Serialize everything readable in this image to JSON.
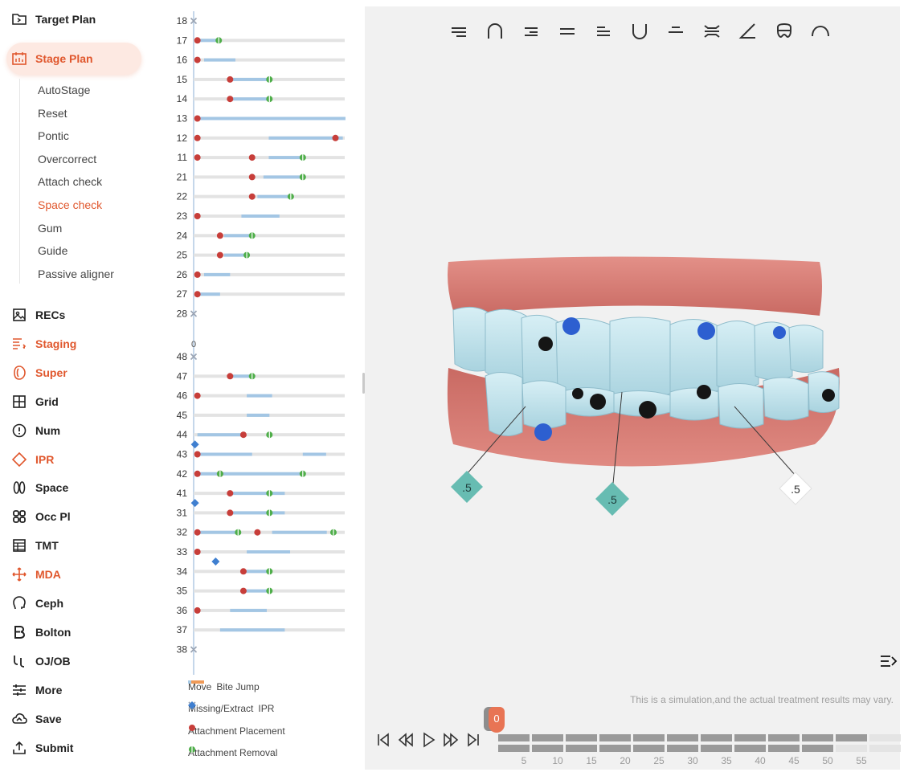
{
  "sidebar": {
    "top_items": [
      {
        "label": "Target Plan",
        "icon": "folder-icon"
      },
      {
        "label": "Stage Plan",
        "icon": "calendar-icon",
        "active": true
      }
    ],
    "sub_items": [
      "AutoStage",
      "Reset",
      "Pontic",
      "Overcorrect",
      "Attach check",
      "Space check",
      "Gum",
      "Guide",
      "Passive aligner"
    ],
    "active_sub_item": "Space check",
    "tools": [
      {
        "label": "RECs",
        "icon": "image-icon",
        "accent": false
      },
      {
        "label": "Staging",
        "icon": "staging-icon",
        "accent": true
      },
      {
        "label": "Super",
        "icon": "super-icon",
        "accent": true
      },
      {
        "label": "Grid",
        "icon": "grid-icon",
        "accent": false
      },
      {
        "label": "Num",
        "icon": "num-icon",
        "accent": false
      },
      {
        "label": "IPR",
        "icon": "diamond-icon",
        "accent": true
      },
      {
        "label": "Space",
        "icon": "space-icon",
        "accent": false
      },
      {
        "label": "Occ Pl",
        "icon": "occ-icon",
        "accent": false
      },
      {
        "label": "TMT",
        "icon": "table-icon",
        "accent": false
      },
      {
        "label": "MDA",
        "icon": "move-icon",
        "accent": true
      },
      {
        "label": "Ceph",
        "icon": "head-icon",
        "accent": false
      },
      {
        "label": "Bolton",
        "icon": "bolton-icon",
        "accent": false
      },
      {
        "label": "OJ/OB",
        "icon": "ojob-icon",
        "accent": false
      },
      {
        "label": "More",
        "icon": "sliders-icon",
        "accent": false
      },
      {
        "label": "Save",
        "icon": "cloud-icon",
        "accent": false
      },
      {
        "label": "Submit",
        "icon": "upload-icon",
        "accent": false
      }
    ]
  },
  "chart_data": {
    "type": "gantt",
    "upper_teeth": [
      {
        "tooth": "18",
        "missing": true
      },
      {
        "tooth": "17",
        "move": [
          [
            0.2,
            3.6
          ]
        ],
        "attach": [
          0.2
        ],
        "remove": [
          3.4
        ]
      },
      {
        "tooth": "16",
        "move": [
          [
            1.2,
            5.9
          ]
        ],
        "attach": [
          0.2
        ]
      },
      {
        "tooth": "15",
        "move": [
          [
            5.1,
            11.0
          ]
        ],
        "attach": [
          5.1
        ],
        "remove": [
          11.0
        ]
      },
      {
        "tooth": "14",
        "move": [
          [
            5.1,
            11.0
          ]
        ],
        "attach": [
          5.1
        ],
        "remove": [
          11.0
        ]
      },
      {
        "tooth": "13",
        "move": [
          [
            0.2,
            22.4
          ]
        ],
        "attach": [
          0.2
        ]
      },
      {
        "tooth": "12",
        "move": [
          [
            10.9,
            22.0
          ]
        ],
        "attach": [
          0.2,
          20.9
        ]
      },
      {
        "tooth": "11",
        "move": [
          [
            10.9,
            16.0
          ]
        ],
        "attach": [
          0.2,
          8.4
        ],
        "remove": [
          16.0
        ]
      },
      {
        "tooth": "21",
        "move": [
          [
            10.1,
            16.0
          ]
        ],
        "attach": [
          8.4
        ],
        "remove": [
          16.0
        ]
      },
      {
        "tooth": "22",
        "move": [
          [
            9.2,
            14.2
          ]
        ],
        "attach": [
          8.4
        ],
        "remove": [
          14.2
        ]
      },
      {
        "tooth": "23",
        "move": [
          [
            6.8,
            12.5
          ]
        ],
        "attach": [
          0.2
        ]
      },
      {
        "tooth": "24",
        "move": [
          [
            4.2,
            8.4
          ]
        ],
        "attach": [
          3.6
        ],
        "remove": [
          8.4
        ]
      },
      {
        "tooth": "25",
        "move": [
          [
            4.2,
            7.6
          ]
        ],
        "attach": [
          3.6
        ],
        "remove": [
          7.6
        ]
      },
      {
        "tooth": "26",
        "move": [
          [
            1.2,
            5.1
          ]
        ],
        "attach": [
          0.2
        ]
      },
      {
        "tooth": "27",
        "move": [
          [
            0.2,
            3.6
          ]
        ],
        "attach": [
          0.2
        ]
      },
      {
        "tooth": "28",
        "missing": true
      }
    ],
    "lower_teeth": [
      {
        "tooth": "48",
        "missing": true
      },
      {
        "tooth": "47",
        "move": [
          [
            5.1,
            8.4
          ]
        ],
        "attach": [
          5.1
        ],
        "remove": [
          8.4
        ]
      },
      {
        "tooth": "46",
        "move": [
          [
            7.6,
            11.4
          ]
        ],
        "attach": [
          0.2
        ]
      },
      {
        "tooth": "45",
        "move": [
          [
            7.6,
            11.0
          ]
        ]
      },
      {
        "tooth": "44",
        "move": [
          [
            0.2,
            6.8
          ]
        ],
        "attach": [
          7.1
        ],
        "remove": [
          11.0
        ],
        "ipr_after": [
          0.2
        ]
      },
      {
        "tooth": "43",
        "move": [
          [
            0.2,
            8.4
          ],
          [
            16.0,
            19.5
          ]
        ],
        "attach": [
          0.2
        ]
      },
      {
        "tooth": "42",
        "move": [
          [
            0.2,
            16.0
          ]
        ],
        "attach": [
          0.2,
          3.6
        ],
        "remove": [
          3.6,
          16.0
        ]
      },
      {
        "tooth": "41",
        "move": [
          [
            5.1,
            13.3
          ]
        ],
        "attach": [
          5.1
        ],
        "remove": [
          11.0
        ],
        "ipr_after": [
          0.2
        ]
      },
      {
        "tooth": "31",
        "move": [
          [
            5.1,
            13.3
          ]
        ],
        "attach": [
          5.1
        ],
        "remove": [
          11.0
        ]
      },
      {
        "tooth": "32",
        "move": [
          [
            0.2,
            6.3
          ],
          [
            11.4,
            19.6
          ]
        ],
        "attach": [
          0.2,
          9.2
        ],
        "remove": [
          6.3,
          20.6
        ]
      },
      {
        "tooth": "33",
        "move": [
          [
            7.6,
            14.1
          ]
        ],
        "attach": [
          0.2
        ],
        "ipr_after": [
          3.3
        ]
      },
      {
        "tooth": "34",
        "move": [
          [
            7.1,
            11.0
          ]
        ],
        "attach": [
          7.1
        ],
        "remove": [
          11.0
        ]
      },
      {
        "tooth": "35",
        "move": [
          [
            7.1,
            11.0
          ]
        ],
        "attach": [
          7.1
        ],
        "remove": [
          11.0
        ]
      },
      {
        "tooth": "36",
        "move": [
          [
            5.1,
            10.6
          ]
        ],
        "attach": [
          0.2
        ]
      },
      {
        "tooth": "37",
        "move": [
          [
            3.6,
            13.3
          ]
        ]
      },
      {
        "tooth": "38",
        "missing": true
      }
    ],
    "axis_label": "0",
    "legend": [
      {
        "label": "Move",
        "color": "#a9cbe6",
        "shape": "line"
      },
      {
        "label": "Bite Jump",
        "color": "#ef9a58",
        "shape": "line"
      },
      {
        "label": "Missing/Extract",
        "color": "#9aa4b4",
        "shape": "x"
      },
      {
        "label": "IPR",
        "color": "#3f7fd0",
        "shape": "diamond"
      },
      {
        "label": "Attachment Placement",
        "color": "#c73e3a",
        "shape": "dot"
      },
      {
        "label": "Attachment Removal",
        "color": "#4fae4a",
        "shape": "split-dot"
      }
    ]
  },
  "viewer": {
    "toolbar_icons": [
      "upper-occlusal-icon",
      "arch-top-icon",
      "right-lateral-icon",
      "front-icon",
      "left-lateral-icon",
      "arch-bottom-icon",
      "lower-occlusal-icon",
      "separate-icon",
      "angle-icon",
      "tooth-icon",
      "arch-icon"
    ],
    "ipr_labels": [
      {
        "value": ".5",
        "style": "teal"
      },
      {
        "value": ".5",
        "style": "teal"
      },
      {
        "value": ".5",
        "style": "white"
      }
    ],
    "disclaimer": "This is a simulation,and the actual treatment results may vary.",
    "gum_color": "#d97b72",
    "tooth_color": "#bde3ec",
    "attachment_color": "#2d5fd0"
  },
  "player": {
    "current_stage": "0",
    "tick_labels": [
      "5",
      "10",
      "15",
      "20",
      "25",
      "30",
      "35",
      "40",
      "45",
      "50",
      "55"
    ],
    "segments": 12,
    "light_segments_from": 11
  }
}
